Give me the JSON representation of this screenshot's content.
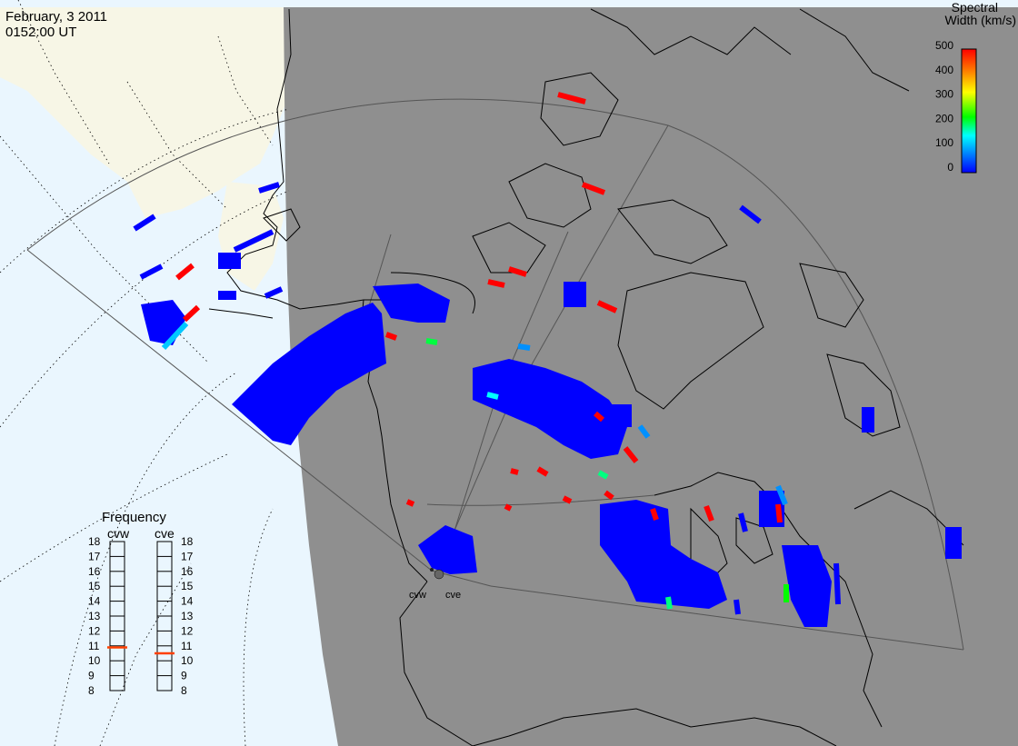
{
  "header": {
    "date": "February, 3 2011",
    "time": "0152:00 UT"
  },
  "colorbar": {
    "title_line1": "Spectral",
    "title_line2": "Width (km/s)",
    "ticks": [
      "500",
      "400",
      "300",
      "200",
      "100",
      "0"
    ],
    "range": [
      0,
      500
    ],
    "colors": [
      "#0000ff",
      "#00a0ff",
      "#00ffff",
      "#00ff00",
      "#ffff00",
      "#ff8000",
      "#ff0000"
    ]
  },
  "frequency_panel": {
    "title": "Frequency",
    "radars": [
      {
        "name": "cvw",
        "frequency_mhz": 10.9
      },
      {
        "name": "cve",
        "frequency_mhz": 10.5
      }
    ],
    "scale_min": 8,
    "scale_max": 18,
    "labels": [
      "18",
      "17",
      "16",
      "15",
      "14",
      "13",
      "12",
      "11",
      "10",
      "9",
      "8"
    ],
    "marker_color": "#ff4000"
  },
  "radar_labels": [
    "cvw",
    "cve"
  ],
  "map": {
    "night_color": "#8f8f8f",
    "ocean_color": "#eaf6fe",
    "land_color": "#f7f6e6",
    "coast_color": "#000000",
    "fov_color": "#555555"
  }
}
